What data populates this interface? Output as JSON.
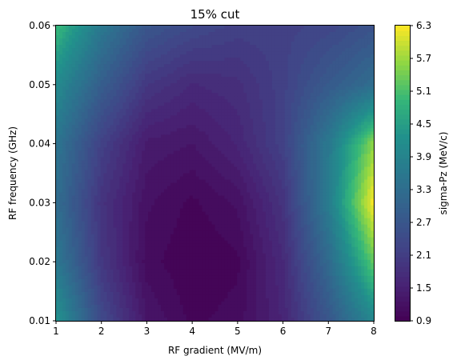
{
  "chart_data": {
    "type": "heatmap",
    "subtype": "filled-contour",
    "title": "15% cut",
    "xlabel": "RF gradient (MV/m)",
    "ylabel": "RF frequency (GHz)",
    "colorbar_label": "sigma-Pz (MeV/c)",
    "xlim": [
      1,
      8
    ],
    "ylim": [
      0.01,
      0.06
    ],
    "clim": [
      0.9,
      6.3
    ],
    "colormap": "viridis",
    "x_ticks": [
      "1",
      "2",
      "3",
      "4",
      "5",
      "6",
      "7",
      "8"
    ],
    "y_ticks": [
      "0.01",
      "0.02",
      "0.03",
      "0.04",
      "0.05",
      "0.06"
    ],
    "colorbar_ticks": [
      "0.9",
      "1.5",
      "2.1",
      "2.7",
      "3.3",
      "3.9",
      "4.5",
      "5.1",
      "5.7",
      "6.3"
    ],
    "x": [
      1,
      2,
      3,
      4,
      5,
      6,
      7,
      8
    ],
    "y": [
      0.01,
      0.02,
      0.03,
      0.04,
      0.05,
      0.06
    ],
    "z": [
      [
        4.3,
        2.4,
        1.3,
        1.0,
        1.1,
        1.6,
        2.7,
        4.0
      ],
      [
        3.6,
        2.0,
        1.1,
        0.9,
        1.0,
        1.7,
        3.2,
        5.3
      ],
      [
        3.3,
        1.9,
        1.2,
        1.0,
        1.2,
        1.9,
        3.7,
        6.3
      ],
      [
        3.5,
        2.2,
        1.4,
        1.3,
        1.6,
        2.2,
        3.6,
        5.6
      ],
      [
        4.1,
        2.9,
        2.0,
        1.7,
        1.8,
        2.2,
        2.8,
        3.3
      ],
      [
        5.0,
        3.6,
        2.7,
        2.4,
        2.2,
        2.2,
        2.3,
        2.6
      ]
    ]
  }
}
